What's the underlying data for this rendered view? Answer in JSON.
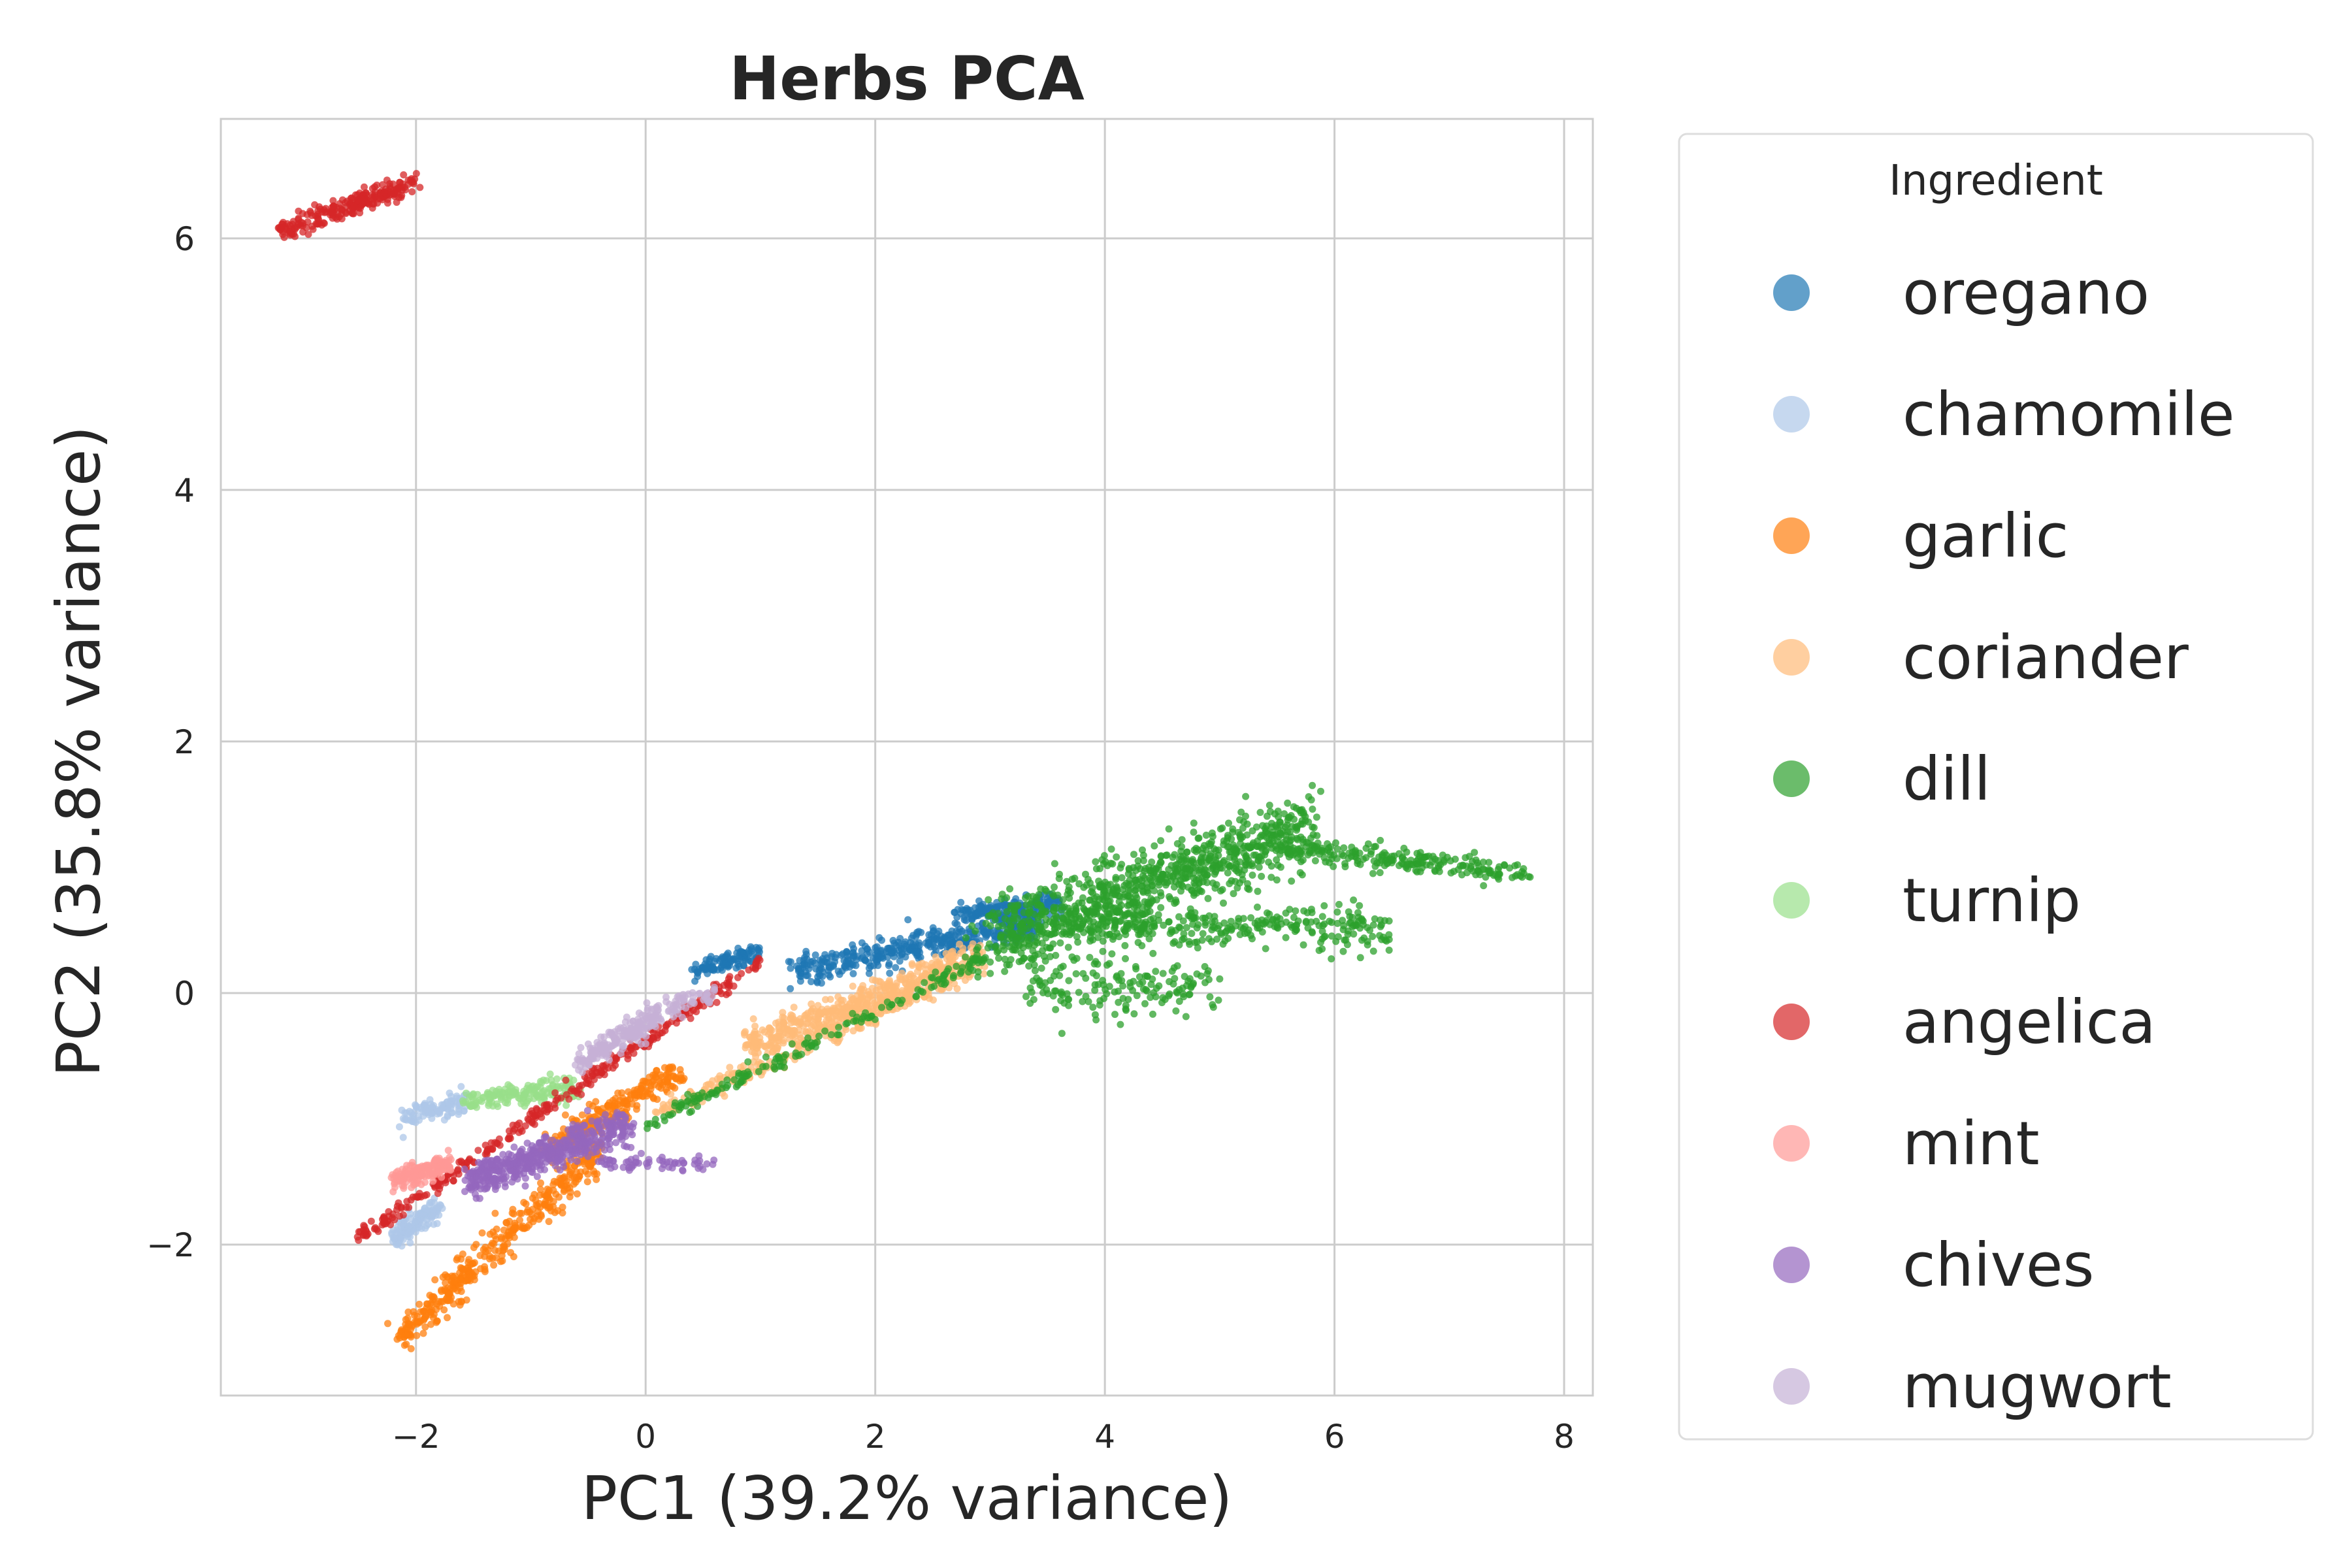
{
  "chart_data": {
    "type": "scatter",
    "title": "Herbs PCA",
    "xlabel": "PC1 (39.2% variance)",
    "ylabel": "PC2 (35.8% variance)",
    "xlim": [
      -3.7,
      8.25
    ],
    "ylim": [
      -3.2,
      6.95
    ],
    "xticks": [
      -2,
      0,
      2,
      4,
      6,
      8
    ],
    "yticks": [
      -2,
      0,
      2,
      4,
      6
    ],
    "grid": true,
    "legend": {
      "title": "Ingredient",
      "placement": "outside-right"
    },
    "series": [
      {
        "name": "oregano",
        "color": "#1f77b4",
        "segments": [
          {
            "from": [
              0.4,
              0.18
            ],
            "to": [
              1.0,
              0.32
            ],
            "spread": 0.04,
            "n": 110
          },
          {
            "from": [
              1.3,
              0.18
            ],
            "to": [
              3.4,
              0.55
            ],
            "spread": 0.06,
            "n": 420
          },
          {
            "from": [
              2.7,
              0.62
            ],
            "to": [
              3.6,
              0.72
            ],
            "spread": 0.04,
            "n": 160
          }
        ]
      },
      {
        "name": "chamomile",
        "color": "#aec7e8",
        "segments": [
          {
            "from": [
              -2.2,
              -1.95
            ],
            "to": [
              -1.8,
              -1.7
            ],
            "spread": 0.05,
            "n": 140
          },
          {
            "from": [
              -2.1,
              -1.0
            ],
            "to": [
              -1.55,
              -0.85
            ],
            "spread": 0.04,
            "n": 110
          }
        ]
      },
      {
        "name": "garlic",
        "color": "#ff7f0e",
        "segments": [
          {
            "from": [
              -2.15,
              -2.75
            ],
            "to": [
              -0.4,
              -1.25
            ],
            "spread": 0.07,
            "n": 420
          },
          {
            "from": [
              -0.85,
              -1.25
            ],
            "to": [
              0.3,
              -0.6
            ],
            "spread": 0.06,
            "n": 260
          }
        ]
      },
      {
        "name": "coriander",
        "color": "#ffbb78",
        "segments": [
          {
            "from": [
              0.9,
              -0.42
            ],
            "to": [
              2.9,
              0.28
            ],
            "spread": 0.07,
            "n": 520
          },
          {
            "from": [
              0.1,
              -0.95
            ],
            "to": [
              2.7,
              0.12
            ],
            "spread": 0.04,
            "n": 220
          }
        ]
      },
      {
        "name": "dill",
        "color": "#2ca02c",
        "segments": [
          {
            "from": [
              0.0,
              -1.05
            ],
            "to": [
              3.0,
              0.3
            ],
            "spread": 0.03,
            "n": 180
          },
          {
            "from": [
              3.0,
              0.4
            ],
            "to": [
              5.8,
              1.33
            ],
            "spread": 0.14,
            "n": 900
          },
          {
            "from": [
              5.5,
              1.15
            ],
            "to": [
              7.7,
              0.95
            ],
            "spread": 0.05,
            "n": 220
          },
          {
            "from": [
              3.8,
              0.55
            ],
            "to": [
              6.5,
              0.5
            ],
            "spread": 0.08,
            "n": 300
          },
          {
            "from": [
              3.3,
              0.05
            ],
            "to": [
              5.0,
              0.05
            ],
            "spread": 0.12,
            "n": 160
          }
        ]
      },
      {
        "name": "turnip",
        "color": "#98df8a",
        "segments": [
          {
            "from": [
              -1.55,
              -0.85
            ],
            "to": [
              -0.6,
              -0.75
            ],
            "spread": 0.05,
            "n": 170
          }
        ]
      },
      {
        "name": "angelica",
        "color": "#d62728",
        "segments": [
          {
            "from": [
              -3.2,
              6.05
            ],
            "to": [
              -2.0,
              6.45
            ],
            "spread": 0.04,
            "n": 240
          },
          {
            "from": [
              -2.5,
              -1.95
            ],
            "to": [
              1.0,
              0.25
            ],
            "spread": 0.03,
            "n": 320
          }
        ]
      },
      {
        "name": "mint",
        "color": "#ff9896",
        "segments": [
          {
            "from": [
              -2.2,
              -1.5
            ],
            "to": [
              -1.7,
              -1.35
            ],
            "spread": 0.04,
            "n": 170
          }
        ]
      },
      {
        "name": "chives",
        "color": "#9467bd",
        "segments": [
          {
            "from": [
              -1.55,
              -1.5
            ],
            "to": [
              -0.15,
              -1.05
            ],
            "spread": 0.07,
            "n": 480
          },
          {
            "from": [
              -0.4,
              -1.35
            ],
            "to": [
              0.6,
              -1.37
            ],
            "spread": 0.03,
            "n": 60
          }
        ]
      },
      {
        "name": "mugwort",
        "color": "#c5b0d5",
        "segments": [
          {
            "from": [
              -0.6,
              -0.55
            ],
            "to": [
              0.1,
              -0.18
            ],
            "spread": 0.05,
            "n": 200
          },
          {
            "from": [
              0.1,
              -0.15
            ],
            "to": [
              0.6,
              0.0
            ],
            "spread": 0.04,
            "n": 60
          }
        ]
      }
    ]
  }
}
